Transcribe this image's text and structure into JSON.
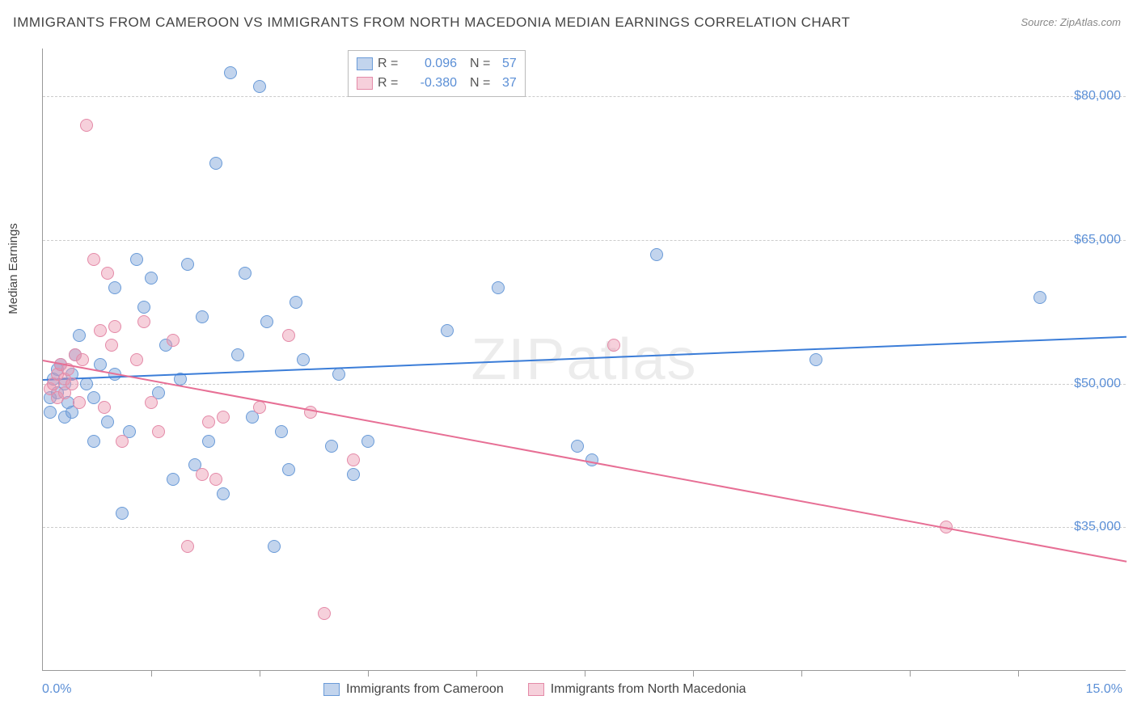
{
  "title": "IMMIGRANTS FROM CAMEROON VS IMMIGRANTS FROM NORTH MACEDONIA MEDIAN EARNINGS CORRELATION CHART",
  "source": "Source: ZipAtlas.com",
  "yaxis_title": "Median Earnings",
  "watermark": "ZIPatlas",
  "xlim": [
    0.0,
    15.0
  ],
  "ylim": [
    20000,
    85000
  ],
  "x_label_min": "0.0%",
  "x_label_max": "15.0%",
  "y_ticks": [
    35000,
    50000,
    65000,
    80000
  ],
  "y_tick_labels": [
    "$35,000",
    "$50,000",
    "$65,000",
    "$80,000"
  ],
  "x_tick_positions": [
    1.5,
    3.0,
    4.5,
    6.0,
    7.5,
    9.0,
    10.5,
    12.0,
    13.5
  ],
  "grid_color": "#cccccc",
  "background_color": "#ffffff",
  "series": [
    {
      "name": "Immigrants from Cameroon",
      "color_fill": "rgba(120,160,215,0.45)",
      "color_stroke": "#6a9bd8",
      "trend_color": "#3b7dd8",
      "marker_radius": 8,
      "R": "0.096",
      "N": "57",
      "trend": {
        "x1": 0.0,
        "y1": 50500,
        "x2": 15.0,
        "y2": 55000
      },
      "points": [
        [
          0.1,
          47000
        ],
        [
          0.1,
          48500
        ],
        [
          0.15,
          50500
        ],
        [
          0.2,
          51500
        ],
        [
          0.2,
          49000
        ],
        [
          0.25,
          52000
        ],
        [
          0.3,
          46500
        ],
        [
          0.3,
          50000
        ],
        [
          0.35,
          48000
        ],
        [
          0.4,
          51000
        ],
        [
          0.4,
          47000
        ],
        [
          0.45,
          53000
        ],
        [
          0.5,
          55000
        ],
        [
          0.6,
          50000
        ],
        [
          0.7,
          48500
        ],
        [
          0.7,
          44000
        ],
        [
          0.8,
          52000
        ],
        [
          0.9,
          46000
        ],
        [
          1.0,
          51000
        ],
        [
          1.0,
          60000
        ],
        [
          1.1,
          36500
        ],
        [
          1.2,
          45000
        ],
        [
          1.3,
          63000
        ],
        [
          1.4,
          58000
        ],
        [
          1.5,
          61000
        ],
        [
          1.6,
          49000
        ],
        [
          1.7,
          54000
        ],
        [
          1.8,
          40000
        ],
        [
          1.9,
          50500
        ],
        [
          2.0,
          62500
        ],
        [
          2.1,
          41500
        ],
        [
          2.2,
          57000
        ],
        [
          2.3,
          44000
        ],
        [
          2.4,
          73000
        ],
        [
          2.5,
          38500
        ],
        [
          2.6,
          82500
        ],
        [
          2.7,
          53000
        ],
        [
          2.8,
          61500
        ],
        [
          2.9,
          46500
        ],
        [
          3.0,
          81000
        ],
        [
          3.1,
          56500
        ],
        [
          3.2,
          33000
        ],
        [
          3.3,
          45000
        ],
        [
          3.4,
          41000
        ],
        [
          3.5,
          58500
        ],
        [
          3.6,
          52500
        ],
        [
          4.0,
          43500
        ],
        [
          4.1,
          51000
        ],
        [
          4.3,
          40500
        ],
        [
          4.5,
          44000
        ],
        [
          5.6,
          55500
        ],
        [
          6.3,
          60000
        ],
        [
          7.4,
          43500
        ],
        [
          7.6,
          42000
        ],
        [
          8.5,
          63500
        ],
        [
          10.7,
          52500
        ],
        [
          13.8,
          59000
        ]
      ]
    },
    {
      "name": "Immigrants from North Macedonia",
      "color_fill": "rgba(235,150,175,0.45)",
      "color_stroke": "#e48aa8",
      "trend_color": "#e76f95",
      "marker_radius": 8,
      "R": "-0.380",
      "N": "37",
      "trend": {
        "x1": 0.0,
        "y1": 52500,
        "x2": 15.0,
        "y2": 31500
      },
      "points": [
        [
          0.1,
          49500
        ],
        [
          0.15,
          50000
        ],
        [
          0.2,
          51000
        ],
        [
          0.2,
          48500
        ],
        [
          0.25,
          52000
        ],
        [
          0.3,
          50500
        ],
        [
          0.3,
          49000
        ],
        [
          0.35,
          51500
        ],
        [
          0.4,
          50000
        ],
        [
          0.45,
          53000
        ],
        [
          0.5,
          48000
        ],
        [
          0.55,
          52500
        ],
        [
          0.6,
          77000
        ],
        [
          0.7,
          63000
        ],
        [
          0.8,
          55500
        ],
        [
          0.85,
          47500
        ],
        [
          0.9,
          61500
        ],
        [
          0.95,
          54000
        ],
        [
          1.0,
          56000
        ],
        [
          1.1,
          44000
        ],
        [
          1.3,
          52500
        ],
        [
          1.4,
          56500
        ],
        [
          1.5,
          48000
        ],
        [
          1.6,
          45000
        ],
        [
          1.8,
          54500
        ],
        [
          2.0,
          33000
        ],
        [
          2.2,
          40500
        ],
        [
          2.3,
          46000
        ],
        [
          2.4,
          40000
        ],
        [
          2.5,
          46500
        ],
        [
          3.0,
          47500
        ],
        [
          3.4,
          55000
        ],
        [
          3.7,
          47000
        ],
        [
          3.9,
          26000
        ],
        [
          4.3,
          42000
        ],
        [
          7.9,
          54000
        ],
        [
          12.5,
          35000
        ]
      ]
    }
  ],
  "legend_top": {
    "rows": [
      {
        "series_idx": 0,
        "R_label": "R =",
        "N_label": "N ="
      },
      {
        "series_idx": 1,
        "R_label": "R =",
        "N_label": "N ="
      }
    ]
  }
}
